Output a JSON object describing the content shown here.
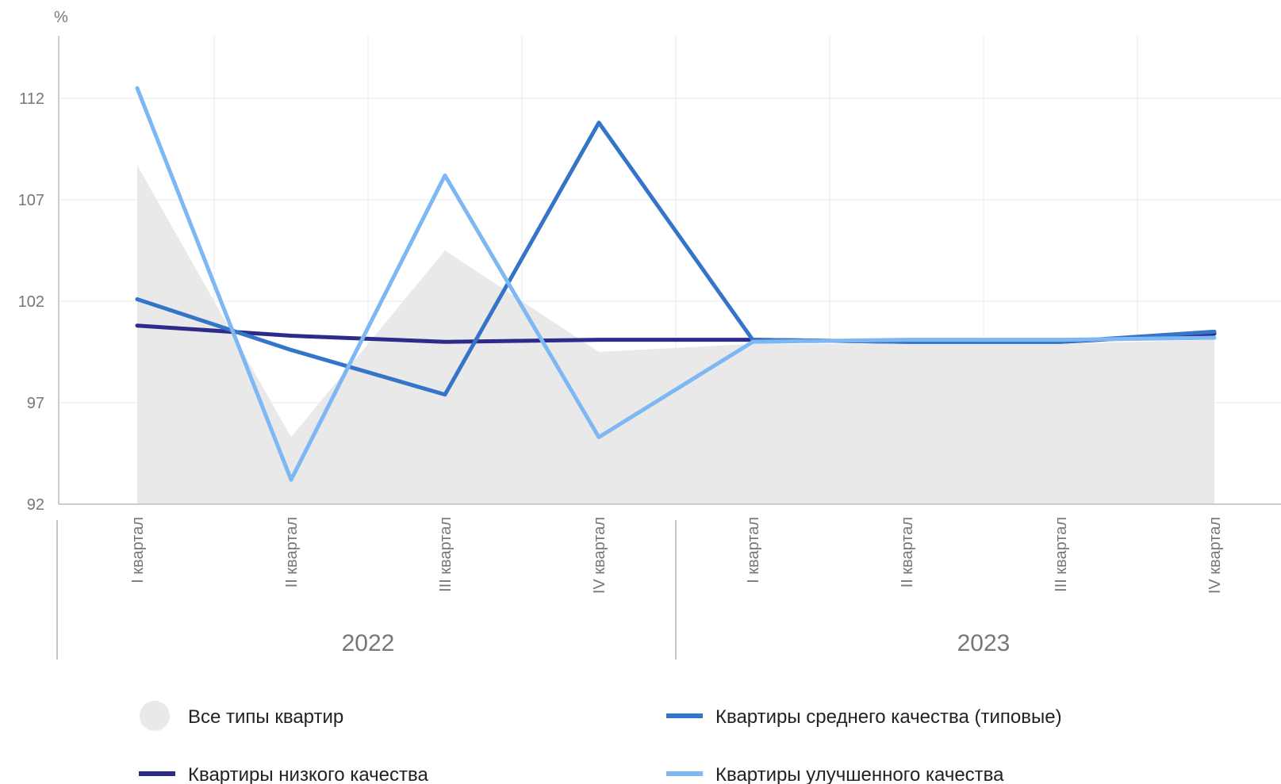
{
  "chart_data": {
    "type": "line",
    "unit": "%",
    "ylim": [
      92,
      115
    ],
    "yticks": [
      92,
      97,
      102,
      107,
      112
    ],
    "grid": true,
    "categories": [
      "I квартал",
      "II квартал",
      "III квартал",
      "IV квартал",
      "I квартал",
      "II квартал",
      "III квартал",
      "IV квартал"
    ],
    "groups": [
      {
        "label": "2022",
        "count": 4
      },
      {
        "label": "2023",
        "count": 4
      }
    ],
    "legend_position": "bottom",
    "series": [
      {
        "name": "Все типы квартир",
        "kind": "area",
        "color": "#e9e9e9",
        "values": [
          108.7,
          95.3,
          104.5,
          99.5,
          99.9,
          99.9,
          99.9,
          100.1
        ]
      },
      {
        "name": "Квартиры низкого качества",
        "kind": "line",
        "color": "#2e2a8a",
        "values": [
          100.8,
          100.3,
          100.0,
          100.1,
          100.1,
          100.0,
          100.0,
          100.4
        ]
      },
      {
        "name": "Квартиры среднего качества (типовые)",
        "kind": "line",
        "color": "#3575c8",
        "values": [
          102.1,
          99.6,
          97.4,
          110.8,
          100.1,
          100.0,
          100.0,
          100.5
        ]
      },
      {
        "name": "Квартиры улучшенного качества",
        "kind": "line",
        "color": "#7eb8f4",
        "values": [
          112.5,
          93.2,
          108.2,
          95.3,
          100.0,
          100.1,
          100.1,
          100.2
        ]
      }
    ]
  }
}
